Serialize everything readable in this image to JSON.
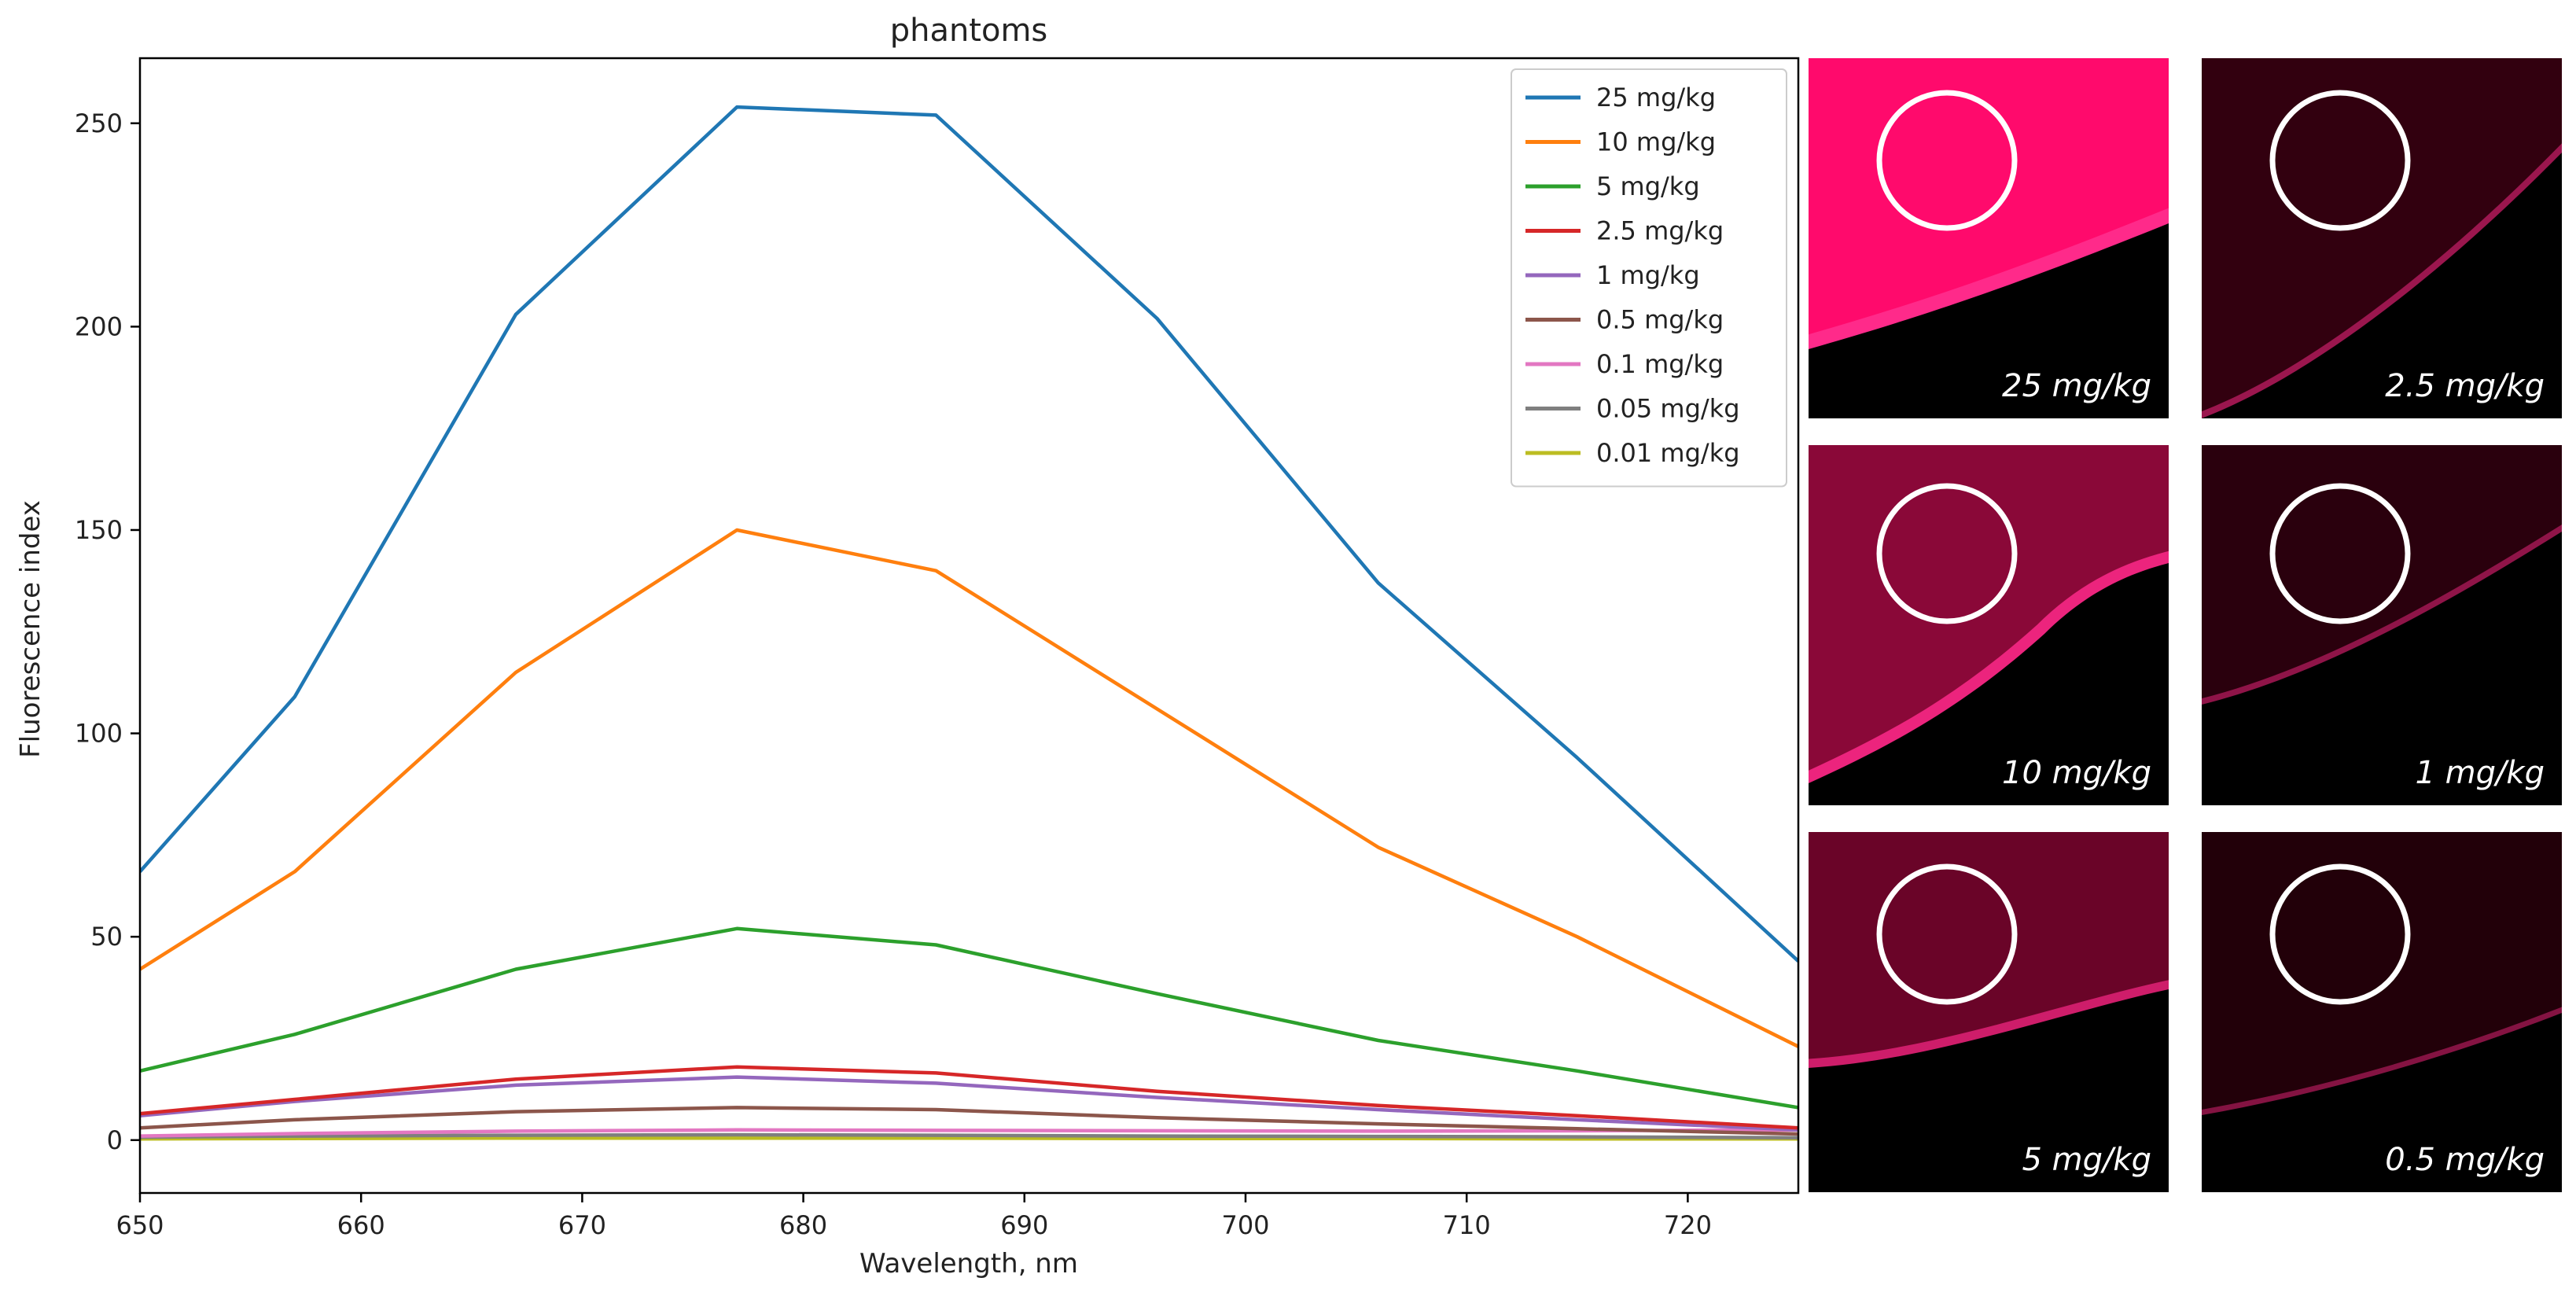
{
  "chart_data": {
    "type": "line",
    "title": "phantoms",
    "xlabel": "Wavelength, nm",
    "ylabel": "Fluorescence index",
    "xlim": [
      650,
      725
    ],
    "ylim": [
      -13,
      266
    ],
    "xticks": [
      650,
      660,
      670,
      680,
      690,
      700,
      710,
      720
    ],
    "yticks": [
      0,
      50,
      100,
      150,
      200,
      250
    ],
    "x": [
      650,
      657,
      667,
      677,
      686,
      696,
      706,
      715,
      725
    ],
    "legend_position": "top-right",
    "series": [
      {
        "name": "25 mg/kg",
        "color": "#1f77b4",
        "values": [
          66,
          109,
          203,
          254,
          252,
          202,
          137,
          94,
          44
        ]
      },
      {
        "name": "10 mg/kg",
        "color": "#ff7f0e",
        "values": [
          42,
          66,
          115,
          150,
          140,
          106,
          72,
          50,
          23
        ]
      },
      {
        "name": "5 mg/kg",
        "color": "#2ca02c",
        "values": [
          17,
          26,
          42,
          52,
          48,
          36,
          24.5,
          17,
          8
        ]
      },
      {
        "name": "2.5 mg/kg",
        "color": "#d62728",
        "values": [
          6.5,
          10,
          15,
          18,
          16.5,
          12,
          8.5,
          6,
          3
        ]
      },
      {
        "name": "1 mg/kg",
        "color": "#9467bd",
        "values": [
          6,
          9.5,
          13.5,
          15.5,
          14,
          10.5,
          7.5,
          5,
          2.5
        ]
      },
      {
        "name": "0.5 mg/kg",
        "color": "#8c564b",
        "values": [
          3,
          5,
          7,
          8,
          7.5,
          5.5,
          4,
          2.8,
          1.5
        ]
      },
      {
        "name": "0.1 mg/kg",
        "color": "#e377c2",
        "values": [
          1,
          1.6,
          2.2,
          2.5,
          2.4,
          2.3,
          2.2,
          2.3,
          2.5
        ]
      },
      {
        "name": "0.05 mg/kg",
        "color": "#7f7f7f",
        "values": [
          0.7,
          1,
          1.2,
          1.3,
          1.2,
          1,
          0.9,
          0.8,
          0.6
        ]
      },
      {
        "name": "0.01 mg/kg",
        "color": "#bcbd22",
        "values": [
          0.3,
          0.4,
          0.5,
          0.5,
          0.5,
          0.4,
          0.4,
          0.3,
          0.3
        ]
      }
    ]
  },
  "images": [
    {
      "label": "25 mg/kg",
      "color": "#ff0a6c",
      "intensity": 1.0
    },
    {
      "label": "2.5 mg/kg",
      "color": "#32000f",
      "intensity": 0.25
    },
    {
      "label": "10 mg/kg",
      "color": "#8a0838",
      "intensity": 0.75
    },
    {
      "label": "1 mg/kg",
      "color": "#2a000d",
      "intensity": 0.2
    },
    {
      "label": "5 mg/kg",
      "color": "#6a0428",
      "intensity": 0.5
    },
    {
      "label": "0.5 mg/kg",
      "color": "#220009",
      "intensity": 0.15
    }
  ]
}
